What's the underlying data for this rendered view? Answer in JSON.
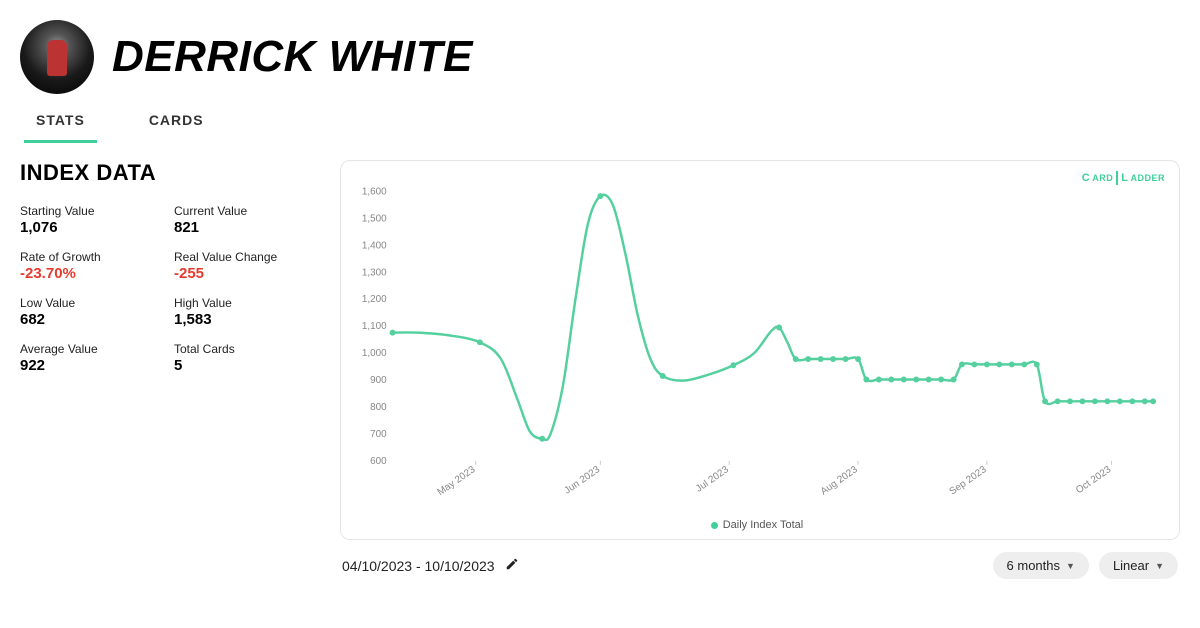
{
  "header": {
    "player_name": "DERRICK WHITE"
  },
  "tabs": {
    "items": [
      {
        "label": "STATS",
        "active": true
      },
      {
        "label": "CARDS",
        "active": false
      }
    ]
  },
  "section_title": "INDEX DATA",
  "stats": {
    "starting_value": {
      "label": "Starting Value",
      "value": "1,076",
      "neg": false
    },
    "current_value": {
      "label": "Current Value",
      "value": "821",
      "neg": false
    },
    "rate_of_growth": {
      "label": "Rate of Growth",
      "value": "-23.70%",
      "neg": true
    },
    "real_value_change": {
      "label": "Real Value Change",
      "value": "-255",
      "neg": true
    },
    "low_value": {
      "label": "Low Value",
      "value": "682",
      "neg": false
    },
    "high_value": {
      "label": "High Value",
      "value": "1,583",
      "neg": false
    },
    "average_value": {
      "label": "Average Value",
      "value": "922",
      "neg": false
    },
    "total_cards": {
      "label": "Total Cards",
      "value": "5",
      "neg": false
    }
  },
  "chart": {
    "type": "line",
    "series_name": "Daily Index Total",
    "line_color": "#54cf9e",
    "line_width": 2.5,
    "marker_color": "#54cf9e",
    "marker_radius": 3,
    "background_color": "#ffffff",
    "border_color": "#e5e5e5",
    "grid_color": "#f0f0f0",
    "ylim": [
      600,
      1600
    ],
    "ytick_step": 100,
    "yticks": [
      600,
      700,
      800,
      900,
      1000,
      1100,
      1200,
      1300,
      1400,
      1500,
      1600
    ],
    "tick_color": "#888888",
    "tick_fontsize": 10,
    "xticks": [
      {
        "x": 20,
        "label": "May 2023"
      },
      {
        "x": 50,
        "label": "Jun 2023"
      },
      {
        "x": 81,
        "label": "Jul 2023"
      },
      {
        "x": 112,
        "label": "Aug 2023"
      },
      {
        "x": 143,
        "label": "Sep 2023"
      },
      {
        "x": 173,
        "label": "Oct 2023"
      }
    ],
    "xrange": [
      0,
      183
    ],
    "points": [
      {
        "x": 0,
        "y": 1076,
        "marker": true
      },
      {
        "x": 6,
        "y": 1076,
        "marker": false
      },
      {
        "x": 14,
        "y": 1065,
        "marker": false
      },
      {
        "x": 21,
        "y": 1040,
        "marker": true
      },
      {
        "x": 26,
        "y": 980,
        "marker": false
      },
      {
        "x": 30,
        "y": 830,
        "marker": false
      },
      {
        "x": 33,
        "y": 710,
        "marker": false
      },
      {
        "x": 36,
        "y": 682,
        "marker": true
      },
      {
        "x": 38,
        "y": 700,
        "marker": false
      },
      {
        "x": 41,
        "y": 880,
        "marker": false
      },
      {
        "x": 44,
        "y": 1200,
        "marker": false
      },
      {
        "x": 47,
        "y": 1480,
        "marker": false
      },
      {
        "x": 50,
        "y": 1583,
        "marker": true
      },
      {
        "x": 53,
        "y": 1550,
        "marker": false
      },
      {
        "x": 56,
        "y": 1370,
        "marker": false
      },
      {
        "x": 59,
        "y": 1140,
        "marker": false
      },
      {
        "x": 62,
        "y": 980,
        "marker": false
      },
      {
        "x": 65,
        "y": 915,
        "marker": true
      },
      {
        "x": 70,
        "y": 898,
        "marker": false
      },
      {
        "x": 76,
        "y": 920,
        "marker": false
      },
      {
        "x": 82,
        "y": 955,
        "marker": true
      },
      {
        "x": 87,
        "y": 1000,
        "marker": false
      },
      {
        "x": 91,
        "y": 1080,
        "marker": false
      },
      {
        "x": 93,
        "y": 1095,
        "marker": true
      },
      {
        "x": 95,
        "y": 1040,
        "marker": false
      },
      {
        "x": 97,
        "y": 978,
        "marker": true
      },
      {
        "x": 100,
        "y": 978,
        "marker": true
      },
      {
        "x": 103,
        "y": 978,
        "marker": true
      },
      {
        "x": 106,
        "y": 978,
        "marker": true
      },
      {
        "x": 109,
        "y": 978,
        "marker": true
      },
      {
        "x": 112,
        "y": 978,
        "marker": true
      },
      {
        "x": 114,
        "y": 902,
        "marker": true
      },
      {
        "x": 117,
        "y": 902,
        "marker": true
      },
      {
        "x": 120,
        "y": 902,
        "marker": true
      },
      {
        "x": 123,
        "y": 902,
        "marker": true
      },
      {
        "x": 126,
        "y": 902,
        "marker": true
      },
      {
        "x": 129,
        "y": 902,
        "marker": true
      },
      {
        "x": 132,
        "y": 902,
        "marker": true
      },
      {
        "x": 135,
        "y": 902,
        "marker": true
      },
      {
        "x": 137,
        "y": 958,
        "marker": true
      },
      {
        "x": 140,
        "y": 958,
        "marker": true
      },
      {
        "x": 143,
        "y": 958,
        "marker": true
      },
      {
        "x": 146,
        "y": 958,
        "marker": true
      },
      {
        "x": 149,
        "y": 958,
        "marker": true
      },
      {
        "x": 152,
        "y": 958,
        "marker": true
      },
      {
        "x": 155,
        "y": 958,
        "marker": true
      },
      {
        "x": 157,
        "y": 821,
        "marker": true
      },
      {
        "x": 160,
        "y": 821,
        "marker": true
      },
      {
        "x": 163,
        "y": 821,
        "marker": true
      },
      {
        "x": 166,
        "y": 821,
        "marker": true
      },
      {
        "x": 169,
        "y": 821,
        "marker": true
      },
      {
        "x": 172,
        "y": 821,
        "marker": true
      },
      {
        "x": 175,
        "y": 821,
        "marker": true
      },
      {
        "x": 178,
        "y": 821,
        "marker": true
      },
      {
        "x": 181,
        "y": 821,
        "marker": true
      },
      {
        "x": 183,
        "y": 821,
        "marker": true
      }
    ],
    "watermark": {
      "left": "ARD",
      "right": "ADDER",
      "prefix": "C",
      "mid": "L"
    }
  },
  "footer": {
    "date_range": "04/10/2023 - 10/10/2023",
    "range_selector": "6 months",
    "scale_selector": "Linear"
  }
}
